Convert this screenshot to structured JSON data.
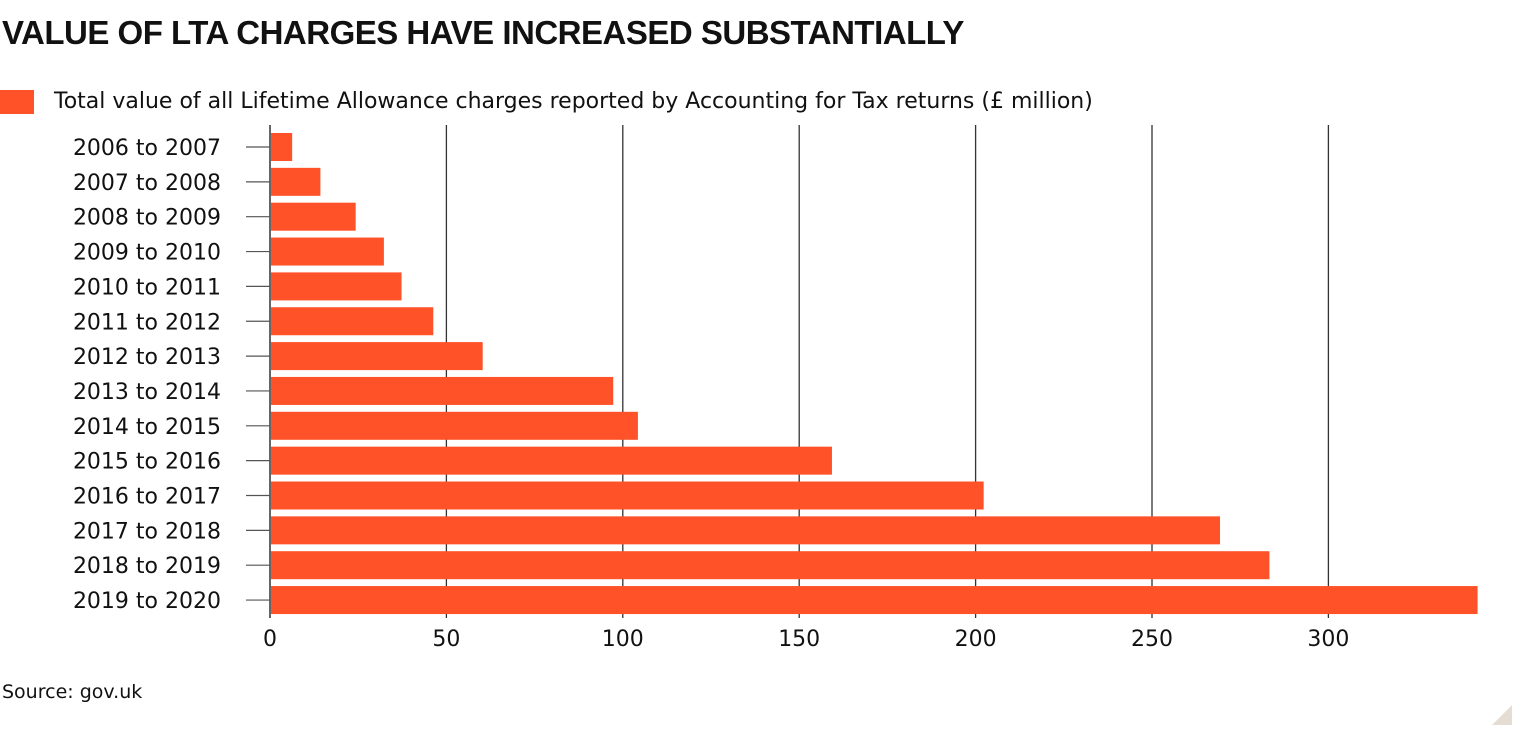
{
  "chart_data": {
    "type": "bar",
    "orientation": "horizontal",
    "title": "VALUE OF LTA CHARGES HAVE INCREASED SUBSTANTIALLY",
    "categories": [
      "2006 to 2007",
      "2007 to 2008",
      "2008 to 2009",
      "2009 to 2010",
      "2010 to 2011",
      "2011 to 2012",
      "2012 to 2013",
      "2013 to 2014",
      "2014 to 2015",
      "2015 to 2016",
      "2016 to 2017",
      "2017 to 2018",
      "2018 to 2019",
      "2019 to 2020"
    ],
    "series": [
      {
        "name": "Total value of all Lifetime Allowance charges reported by Accounting for Tax returns (£ million)",
        "values": [
          6,
          14,
          24,
          32,
          37,
          46,
          60,
          97,
          104,
          159,
          202,
          269,
          283,
          342
        ]
      }
    ],
    "xticks": [
      0,
      50,
      100,
      150,
      200,
      250,
      300
    ],
    "xlim": [
      0,
      343
    ],
    "grid": true,
    "legend_position": "top-left",
    "source": "Source: gov.uk",
    "colors": {
      "bar": "#ff5229",
      "grid": "#333333"
    }
  }
}
